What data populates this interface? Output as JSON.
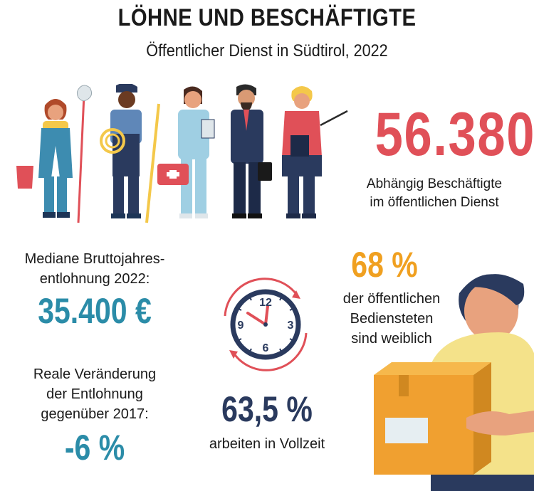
{
  "header": {
    "title": "LÖHNE UND BESCHÄFTIGTE",
    "subtitle": "Öffentlicher Dienst in Südtirol, 2022"
  },
  "employees": {
    "value": "56.380",
    "label_line1": "Abhängig Beschäftigte",
    "label_line2": "im öffentlichen Dienst"
  },
  "salary": {
    "label_line1": "Mediane Bruttojahres-",
    "label_line2": "entlohnung 2022:",
    "value": "35.400 €"
  },
  "real_change": {
    "label_line1": "Reale Veränderung",
    "label_line2": "der Entlohnung",
    "label_line3": "gegenüber 2017:",
    "value": "-6 %"
  },
  "women": {
    "value": "68 %",
    "label_line1": "der öffentlichen",
    "label_line2": "Bediensteten",
    "label_line3": "sind weiblich"
  },
  "fulltime": {
    "value": "63,5 %",
    "label": "arbeiten in Vollzeit"
  },
  "clock": {
    "n12": "12",
    "n3": "3",
    "n6": "6",
    "n9": "9"
  },
  "colors": {
    "red": "#e05058",
    "blue": "#2b8ca8",
    "orange": "#f0a020",
    "navy": "#2a3a5e"
  },
  "icons": [
    "worker-cleaner-icon",
    "worker-electrician-icon",
    "nurse-icon",
    "businessman-icon",
    "teacher-icon",
    "clock-icon",
    "woman-with-box-icon"
  ]
}
